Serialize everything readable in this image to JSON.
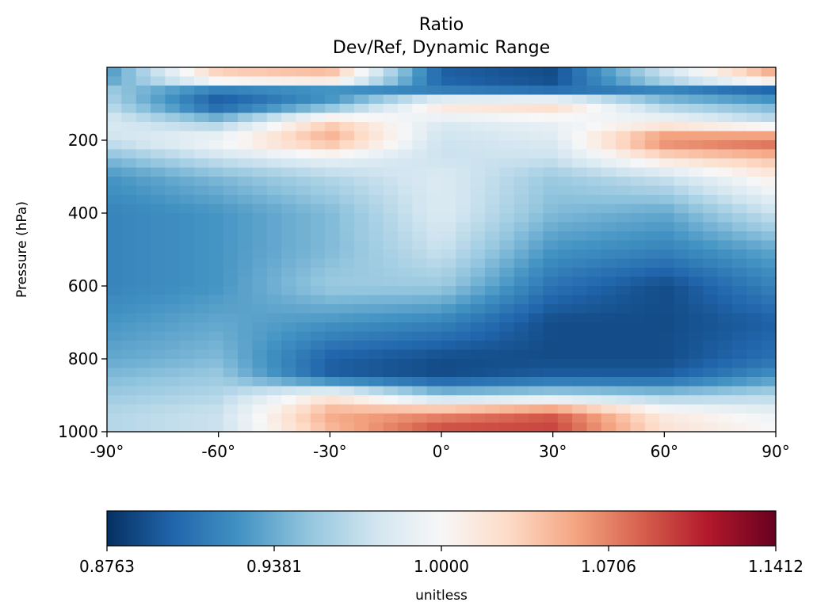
{
  "chart_data": {
    "type": "heatmap",
    "title": "Ratio",
    "subtitle": "Dev/Ref, Dynamic Range",
    "ylabel": "Pressure (hPa)",
    "xlabel": "",
    "x_ticks": [
      "-90°",
      "-60°",
      "-30°",
      "0°",
      "30°",
      "60°",
      "90°"
    ],
    "y_ticks": [
      "200",
      "400",
      "600",
      "800",
      "1000"
    ],
    "xlim": [
      -90,
      90
    ],
    "ylim": [
      1000,
      0
    ],
    "colormap": "RdBu_r",
    "colorbar": {
      "label": "unitless",
      "ticks": [
        "0.8763",
        "0.9381",
        "1.0000",
        "1.0706",
        "1.1412"
      ],
      "range": [
        0.8763,
        1.1412
      ],
      "colors": [
        "#053061",
        "#2166ac",
        "#4393c3",
        "#92c5de",
        "#d1e5f0",
        "#f7f7f7",
        "#fddbc7",
        "#f4a582",
        "#d6604d",
        "#b2182b",
        "#67001f"
      ]
    },
    "lat": [
      -90,
      -60,
      -30,
      0,
      30,
      60,
      90
    ],
    "pressure_levels": [
      30,
      60,
      100,
      150,
      200,
      250,
      300,
      400,
      500,
      600,
      700,
      800,
      850,
      900,
      950,
      1000
    ],
    "values": [
      [
        0.93,
        1.04,
        1.05,
        0.9,
        0.89,
        0.98,
        1.06
      ],
      [
        0.96,
        0.92,
        0.93,
        0.91,
        0.9,
        0.92,
        0.9
      ],
      [
        0.97,
        0.89,
        0.93,
        1.03,
        1.04,
        0.96,
        0.94
      ],
      [
        0.99,
        0.96,
        1.04,
        0.99,
        1.0,
        1.01,
        0.98
      ],
      [
        0.98,
        1.01,
        1.06,
        0.98,
        0.99,
        1.08,
        1.09
      ],
      [
        0.95,
        0.98,
        1.0,
        0.98,
        0.98,
        1.03,
        1.05
      ],
      [
        0.93,
        0.95,
        0.97,
        0.99,
        0.96,
        0.98,
        1.02
      ],
      [
        0.92,
        0.93,
        0.95,
        0.99,
        0.95,
        0.94,
        0.98
      ],
      [
        0.92,
        0.93,
        0.95,
        0.98,
        0.93,
        0.92,
        0.94
      ],
      [
        0.92,
        0.93,
        0.96,
        0.96,
        0.91,
        0.89,
        0.92
      ],
      [
        0.93,
        0.94,
        0.93,
        0.92,
        0.89,
        0.89,
        0.9
      ],
      [
        0.94,
        0.95,
        0.9,
        0.89,
        0.89,
        0.89,
        0.91
      ],
      [
        0.95,
        0.96,
        0.9,
        0.89,
        0.9,
        0.9,
        0.93
      ],
      [
        0.96,
        0.97,
        1.02,
        0.96,
        0.97,
        0.96,
        0.97
      ],
      [
        0.97,
        0.98,
        1.06,
        1.07,
        1.09,
        1.02,
        1.0
      ],
      [
        0.97,
        0.98,
        1.05,
        1.1,
        1.1,
        1.03,
        1.01
      ]
    ]
  }
}
